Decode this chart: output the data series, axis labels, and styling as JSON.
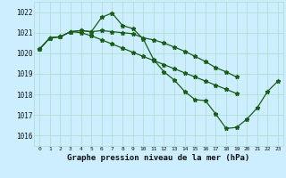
{
  "title": "Graphe pression niveau de la mer (hPa)",
  "bg_color": "#cceeff",
  "grid_color": "#aaddcc",
  "line_color": "#1a5c1a",
  "x_labels": [
    "0",
    "1",
    "2",
    "3",
    "4",
    "5",
    "6",
    "7",
    "8",
    "9",
    "10",
    "11",
    "12",
    "13",
    "14",
    "15",
    "16",
    "17",
    "18",
    "19",
    "20",
    "21",
    "22",
    "23"
  ],
  "ylim": [
    1015.5,
    1022.5
  ],
  "yticks": [
    1016,
    1017,
    1018,
    1019,
    1020,
    1021,
    1022
  ],
  "series": [
    [
      1020.2,
      1020.75,
      1020.8,
      1021.05,
      1021.1,
      1021.05,
      1021.75,
      1021.95,
      1021.35,
      1021.2,
      1020.7,
      1019.7,
      1019.1,
      1018.7,
      1018.15,
      1017.75,
      1017.7,
      1017.05,
      1016.35,
      1016.4,
      1016.8,
      1017.35,
      1018.15,
      1018.65
    ],
    [
      1020.2,
      1020.75,
      1020.8,
      1021.05,
      1021.1,
      1021.05,
      1021.1,
      1021.05,
      1021.0,
      1020.95,
      1020.75,
      1020.65,
      1020.5,
      1020.3,
      1020.1,
      1019.85,
      1019.6,
      1019.3,
      1019.1,
      1018.85,
      null,
      null,
      null,
      null
    ],
    [
      1020.2,
      1020.75,
      1020.8,
      1021.05,
      1021.0,
      1020.85,
      1020.65,
      1020.45,
      1020.25,
      1020.05,
      1019.85,
      1019.65,
      1019.45,
      1019.25,
      1019.05,
      1018.85,
      1018.65,
      1018.45,
      1018.25,
      1018.05,
      null,
      null,
      null,
      null
    ]
  ],
  "marker": "*",
  "markersize": 3.5,
  "linewidth": 0.9
}
